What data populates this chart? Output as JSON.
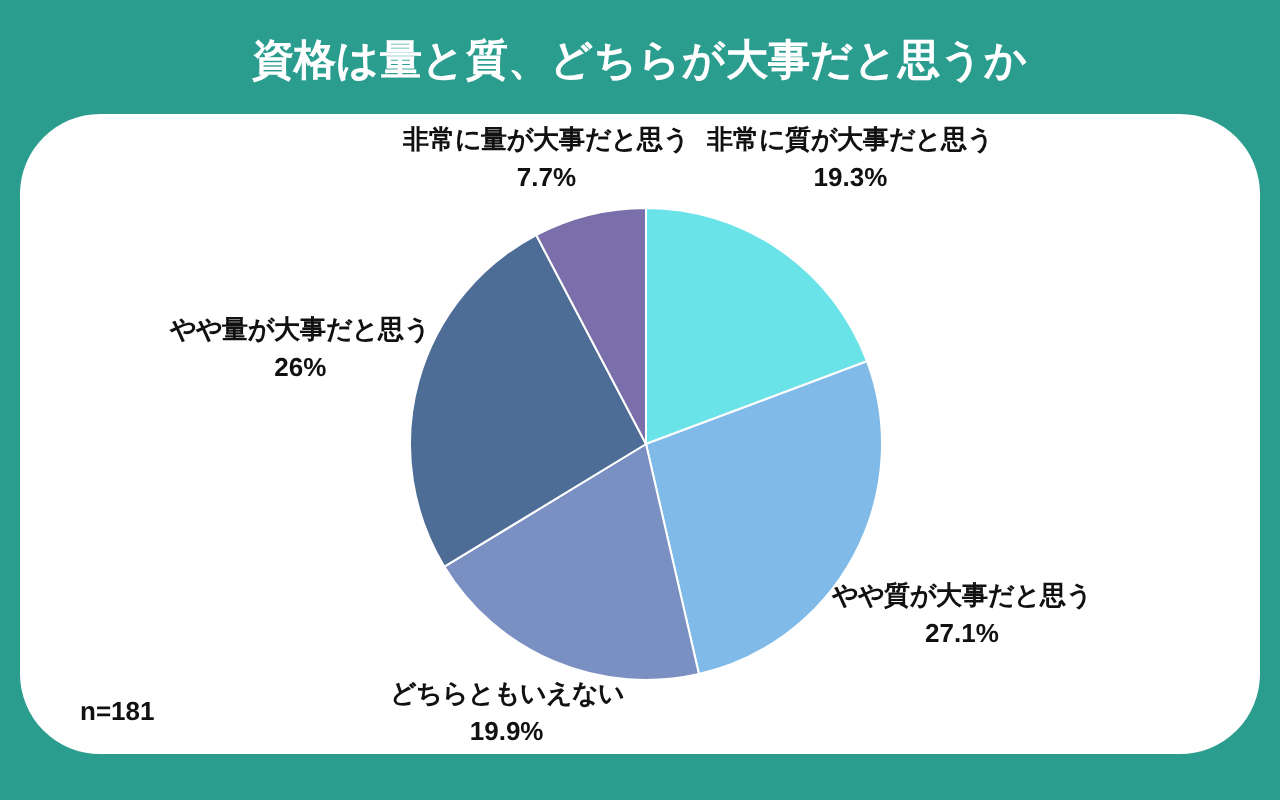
{
  "chart_data": {
    "type": "pie",
    "title": "資格は量と質、どちらが大事だと思うか",
    "categories": [
      "非常に質が大事だと思う",
      "やや質が大事だと思う",
      "どちらともいえない",
      "やや量が大事だと思う",
      "非常に量が大事だと思う"
    ],
    "values": [
      19.3,
      27.1,
      19.9,
      26,
      7.7
    ],
    "colors": [
      "#6ae3e8",
      "#7fbae8",
      "#7b90c2",
      "#4d6c96",
      "#7b6fab"
    ],
    "value_labels": [
      "19.3%",
      "27.1%",
      "19.9%",
      "26%",
      "7.7%"
    ],
    "annotations": [
      "n=181"
    ]
  }
}
